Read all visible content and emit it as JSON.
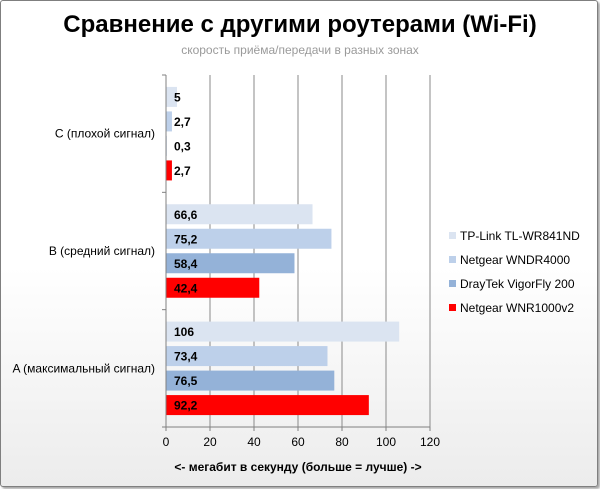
{
  "chart_data": {
    "type": "bar",
    "orientation": "horizontal",
    "title": "Сравнение с другими роутерами (Wi-Fi)",
    "subtitle": "скорость приёма/передачи в разных зонах",
    "xlabel": "<- мегабит в секунду (больше = лучше) ->",
    "ylabel": "",
    "xlim": [
      0,
      120
    ],
    "x_ticks": [
      "0",
      "20",
      "40",
      "60",
      "80",
      "100",
      "120"
    ],
    "categories": [
      "C (плохой сигнал)",
      "B (средний сигнал)",
      "A (максимальный сигнал)"
    ],
    "series": [
      {
        "name": "TP-Link TL-WR841ND",
        "color": "#dbe4f1",
        "values": [
          5,
          66.6,
          106
        ],
        "labels": [
          "5",
          "66,6",
          "106"
        ]
      },
      {
        "name": "Netgear WNDR4000",
        "color": "#bdd0ea",
        "values": [
          2.7,
          75.2,
          73.4
        ],
        "labels": [
          "2,7",
          "75,2",
          "73,4"
        ]
      },
      {
        "name": "DrayTek VigorFly 200",
        "color": "#94b2d8",
        "values": [
          0.3,
          58.4,
          76.5
        ],
        "labels": [
          "0,3",
          "58,4",
          "76,5"
        ]
      },
      {
        "name": "Netgear WNR1000v2",
        "color": "#ff0000",
        "values": [
          2.7,
          42.4,
          92.2
        ],
        "labels": [
          "2,7",
          "42,4",
          "92,2"
        ]
      }
    ],
    "grid": true,
    "legend": "right"
  }
}
